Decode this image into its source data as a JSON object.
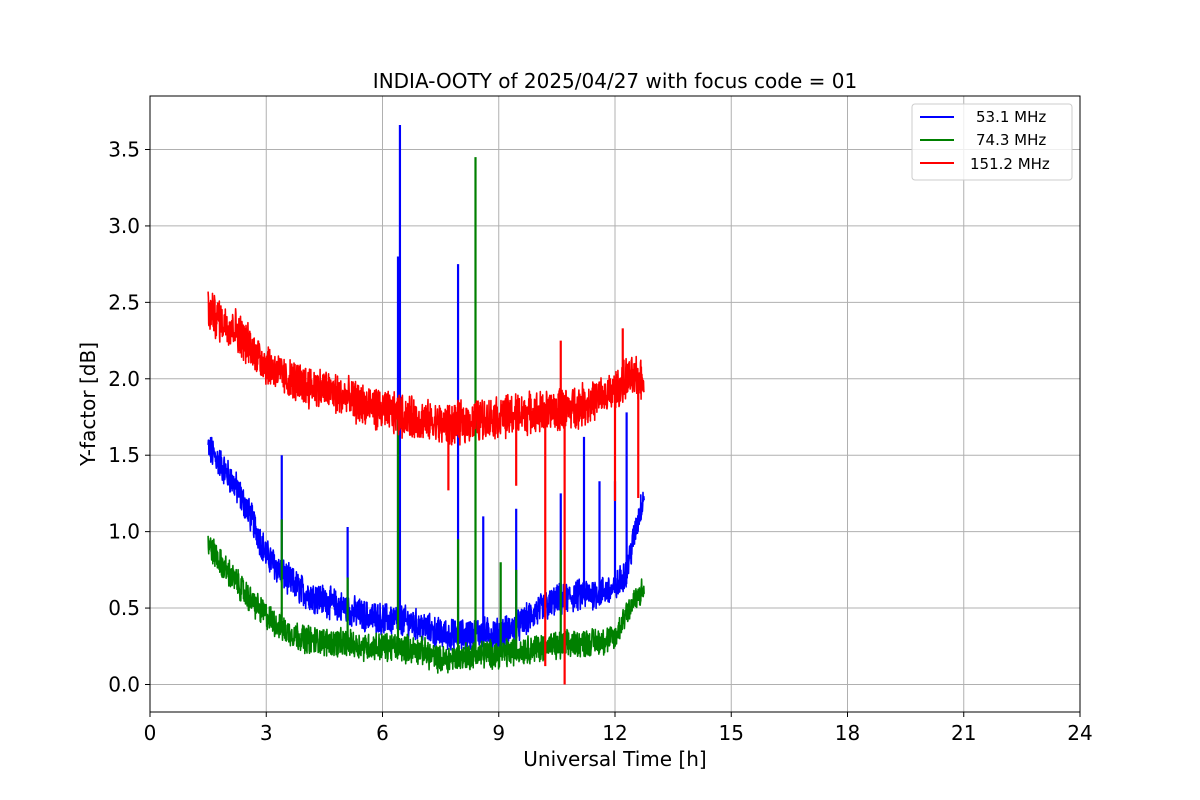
{
  "chart_data": {
    "type": "line",
    "title": "INDIA-OOTY of 2025/04/27 with focus code = 01",
    "xlabel": "Universal Time [h]",
    "ylabel": "Y-factor [dB]",
    "xlim": [
      0,
      24
    ],
    "ylim": [
      -0.18,
      3.85
    ],
    "xticks": [
      0,
      3,
      6,
      9,
      12,
      15,
      18,
      21,
      24
    ],
    "xtick_labels": [
      "0",
      "3",
      "6",
      "9",
      "12",
      "15",
      "18",
      "21",
      "24"
    ],
    "yticks": [
      0.0,
      0.5,
      1.0,
      1.5,
      2.0,
      2.5,
      3.0,
      3.5
    ],
    "ytick_labels": [
      "0.0",
      "0.5",
      "1.0",
      "1.5",
      "2.0",
      "2.5",
      "3.0",
      "3.5"
    ],
    "grid": true,
    "legend_position": "top-right",
    "series": [
      {
        "name": "53.1 MHz",
        "color": "#0000ff",
        "noise": 0.09,
        "x": [
          1.5,
          1.8,
          2.2,
          2.6,
          3.0,
          3.5,
          4.0,
          4.5,
          5.0,
          5.5,
          6.0,
          6.5,
          7.0,
          7.5,
          8.0,
          8.5,
          9.0,
          9.5,
          10.0,
          10.5,
          11.0,
          11.5,
          12.0,
          12.3,
          12.75
        ],
        "y": [
          1.55,
          1.45,
          1.3,
          1.1,
          0.85,
          0.7,
          0.6,
          0.55,
          0.5,
          0.45,
          0.43,
          0.42,
          0.38,
          0.33,
          0.32,
          0.34,
          0.33,
          0.38,
          0.48,
          0.55,
          0.58,
          0.6,
          0.62,
          0.75,
          1.25
        ],
        "spikes": [
          {
            "x": 3.4,
            "y": 1.5
          },
          {
            "x": 5.1,
            "y": 1.03
          },
          {
            "x": 6.4,
            "y": 2.8
          },
          {
            "x": 6.45,
            "y": 3.66
          },
          {
            "x": 7.95,
            "y": 2.75
          },
          {
            "x": 8.6,
            "y": 1.1
          },
          {
            "x": 9.45,
            "y": 1.15
          },
          {
            "x": 10.6,
            "y": 1.25
          },
          {
            "x": 11.2,
            "y": 1.62
          },
          {
            "x": 11.6,
            "y": 1.33
          },
          {
            "x": 12.0,
            "y": 1.33
          },
          {
            "x": 12.3,
            "y": 1.78
          }
        ],
        "dips": []
      },
      {
        "name": "74.3 MHz",
        "color": "#008000",
        "noise": 0.08,
        "x": [
          1.5,
          1.8,
          2.2,
          2.6,
          3.0,
          3.5,
          4.0,
          4.5,
          5.0,
          5.5,
          6.0,
          6.5,
          7.0,
          7.5,
          8.0,
          8.5,
          9.0,
          9.5,
          10.0,
          10.5,
          11.0,
          11.5,
          12.0,
          12.3,
          12.75
        ],
        "y": [
          0.92,
          0.8,
          0.68,
          0.55,
          0.45,
          0.35,
          0.3,
          0.28,
          0.27,
          0.25,
          0.25,
          0.24,
          0.22,
          0.16,
          0.18,
          0.2,
          0.2,
          0.22,
          0.24,
          0.25,
          0.27,
          0.28,
          0.3,
          0.48,
          0.62
        ],
        "spikes": [
          {
            "x": 3.4,
            "y": 1.08
          },
          {
            "x": 5.1,
            "y": 0.7
          },
          {
            "x": 6.4,
            "y": 1.85
          },
          {
            "x": 7.95,
            "y": 0.95
          },
          {
            "x": 8.4,
            "y": 3.45
          },
          {
            "x": 9.05,
            "y": 0.8
          },
          {
            "x": 9.45,
            "y": 0.75
          },
          {
            "x": 10.6,
            "y": 0.88
          }
        ],
        "dips": []
      },
      {
        "name": "151.2 MHz",
        "color": "#ff0000",
        "noise": 0.12,
        "x": [
          1.5,
          1.8,
          2.2,
          2.6,
          3.0,
          3.5,
          4.0,
          4.5,
          5.0,
          5.5,
          6.0,
          6.5,
          7.0,
          7.5,
          8.0,
          8.5,
          9.0,
          9.5,
          10.0,
          10.5,
          11.0,
          11.5,
          12.0,
          12.3,
          12.75
        ],
        "y": [
          2.45,
          2.38,
          2.33,
          2.2,
          2.1,
          2.0,
          1.96,
          1.93,
          1.88,
          1.83,
          1.79,
          1.76,
          1.73,
          1.7,
          1.71,
          1.73,
          1.75,
          1.77,
          1.78,
          1.79,
          1.82,
          1.86,
          1.92,
          2.0,
          2.0
        ],
        "spikes": [
          {
            "x": 10.6,
            "y": 2.25
          },
          {
            "x": 12.2,
            "y": 2.33
          }
        ],
        "dips": [
          {
            "x": 7.7,
            "y": 1.27
          },
          {
            "x": 9.45,
            "y": 1.3
          },
          {
            "x": 10.2,
            "y": 0.12
          },
          {
            "x": 10.7,
            "y": 0.0
          },
          {
            "x": 12.0,
            "y": 1.2
          },
          {
            "x": 12.6,
            "y": 1.22
          }
        ]
      }
    ]
  }
}
